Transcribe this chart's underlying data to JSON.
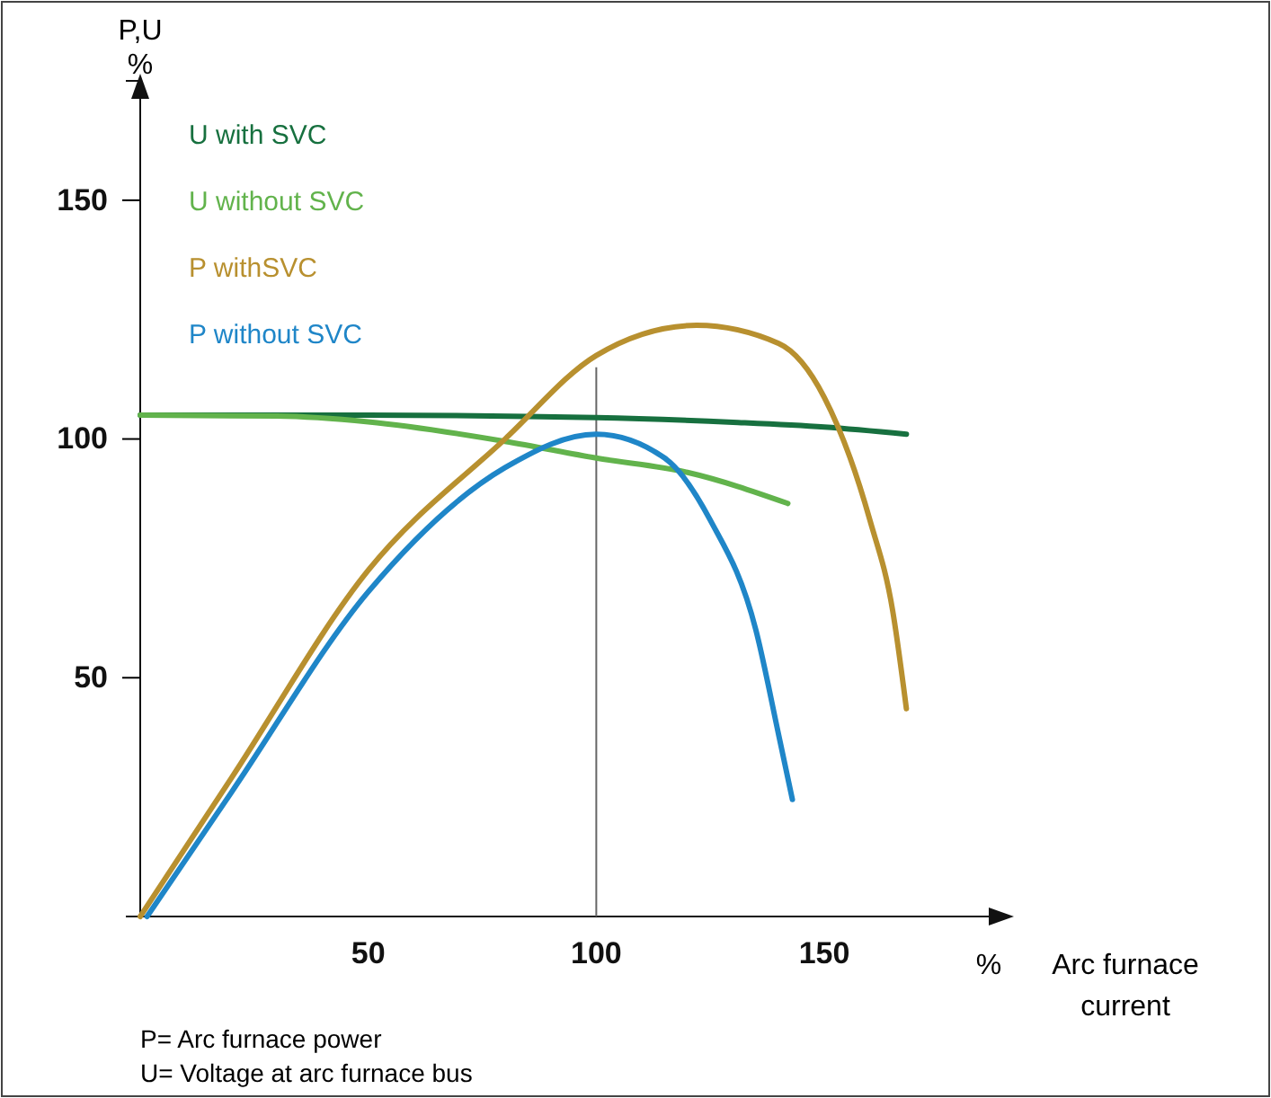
{
  "chart_data": {
    "type": "line",
    "xlabel": "% Arc furnace current",
    "ylabel": "P,U %",
    "xlim": [
      0,
      190
    ],
    "xticks": [
      50,
      100,
      150
    ],
    "ylim": [
      0,
      175
    ],
    "yticks": [
      50,
      100,
      150
    ],
    "grid": false,
    "legend": "top left",
    "marker": "none",
    "line_style": "solid",
    "ref_lines": [
      {
        "axis": "x",
        "value": 100,
        "color": "#666666"
      }
    ],
    "series": [
      {
        "name": "U with SVC",
        "color": "#17703f",
        "x": [
          0,
          50,
          100,
          130,
          150,
          168
        ],
        "values": [
          105,
          105,
          104.5,
          103.5,
          102.5,
          101
        ]
      },
      {
        "name": "U without SVC",
        "color": "#62b34c",
        "x": [
          0,
          30,
          50,
          80,
          100,
          120,
          142
        ],
        "values": [
          105,
          104.8,
          103.6,
          99.5,
          96,
          93,
          86.5
        ]
      },
      {
        "name": "P withSVC",
        "color": "#b8902f",
        "x": [
          0,
          20,
          50,
          80,
          100,
          122,
          140,
          150,
          160,
          165,
          168
        ],
        "values": [
          0,
          29,
          72.5,
          100,
          117.5,
          123.8,
          120,
          108.7,
          83,
          64,
          43.5
        ]
      },
      {
        "name": "P without SVC",
        "color": "#1f86c8",
        "x": [
          1.5,
          20,
          50,
          80,
          100,
          115,
          125,
          135,
          140,
          143
        ],
        "values": [
          0,
          26,
          68,
          94,
          101,
          96,
          83,
          60,
          38,
          24.5
        ]
      }
    ],
    "annotations": [
      "P= Arc furnace power",
      "U= Voltage at arc furnace bus"
    ]
  }
}
